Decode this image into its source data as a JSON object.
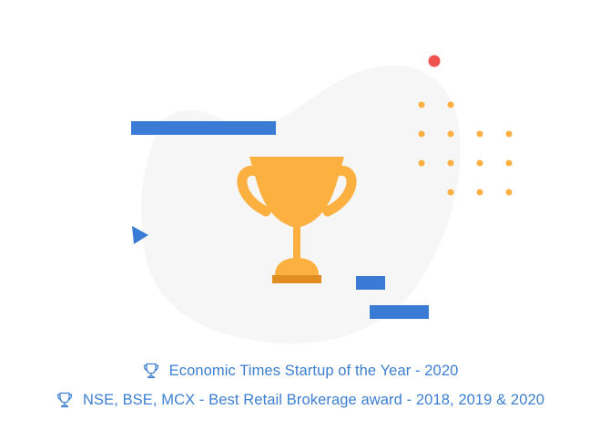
{
  "awards": [
    {
      "icon": "trophy-outline-icon",
      "text": "Economic Times Startup of the Year - 2020"
    },
    {
      "icon": "trophy-outline-icon",
      "text": "NSE, BSE, MCX - Best Retail Brokerage award - 2018, 2019 & 2020"
    }
  ],
  "illustration": {
    "icon": "trophy-icon",
    "colors": {
      "trophy": "#fbb040",
      "trophy_base": "#e08e22",
      "accent_blue": "#3a7bd5",
      "dot_orange": "#fbb040",
      "dot_red": "#ef5350",
      "blob": "#f6f6f6",
      "text": "#3d7fd0"
    }
  }
}
